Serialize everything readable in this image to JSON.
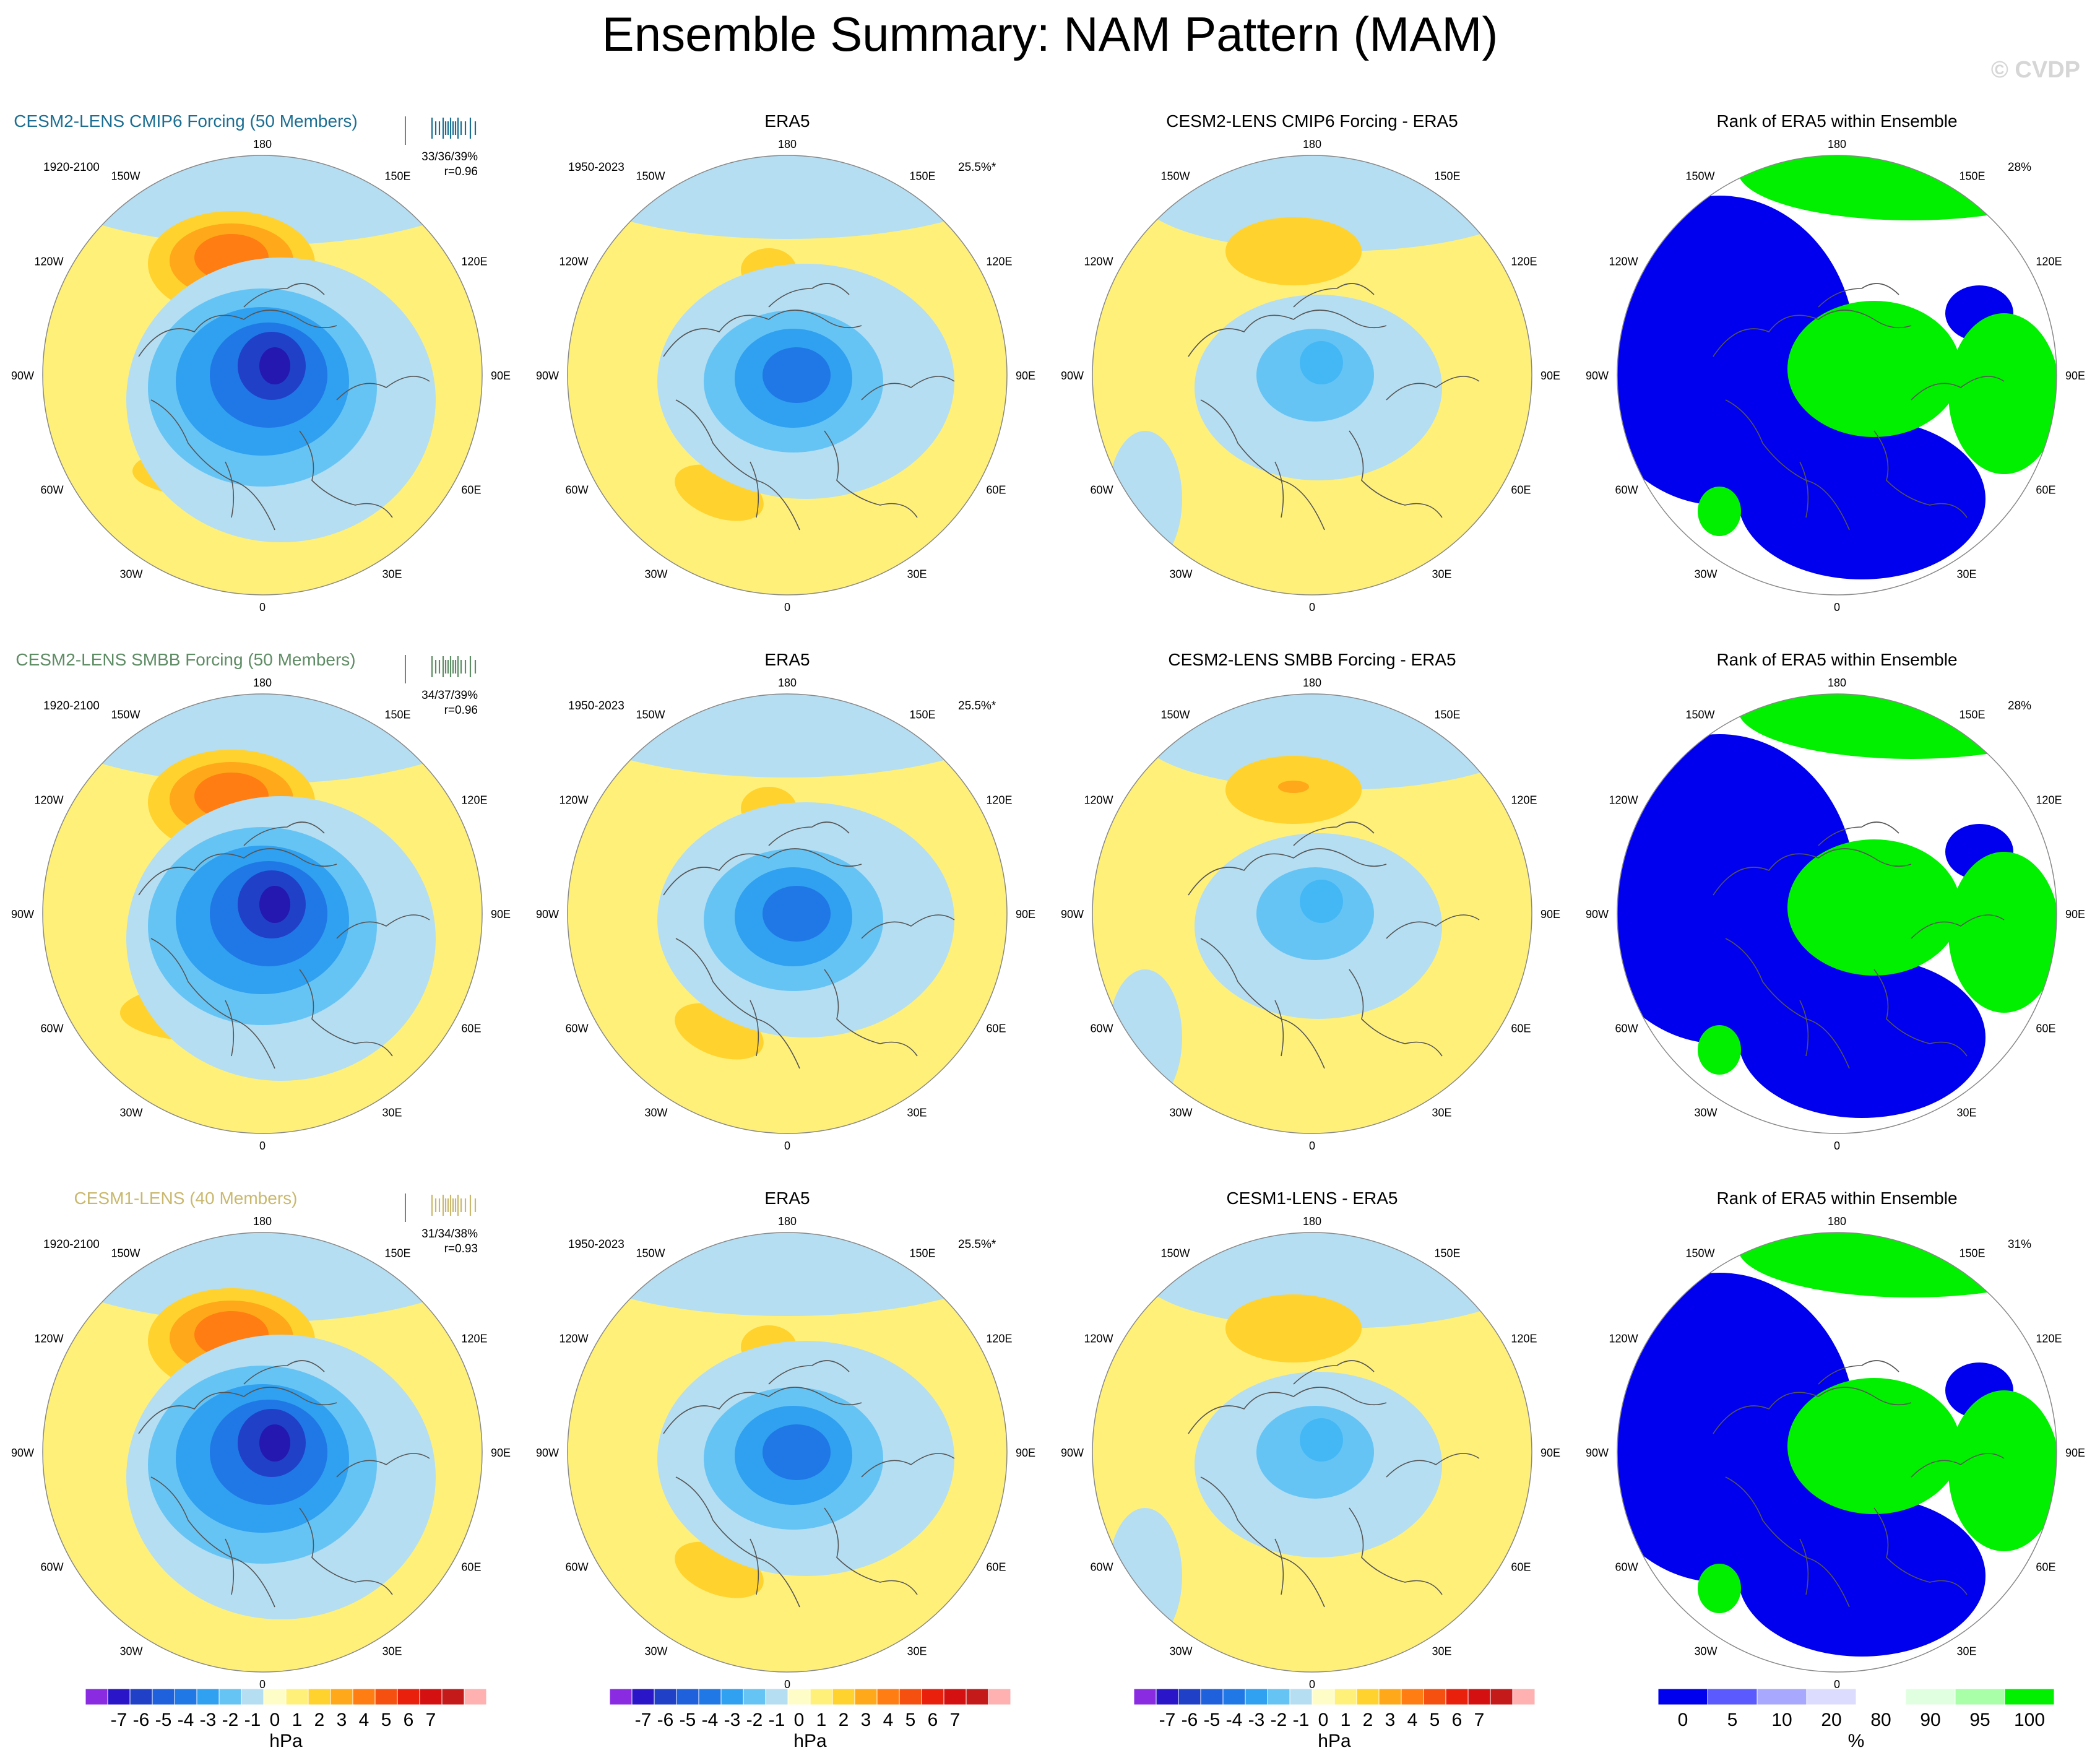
{
  "title": "Ensemble Summary: NAM Pattern (MAM)",
  "watermark": "© CVDP",
  "colors": {
    "pos1": "#fff07a",
    "pos2": "#ffd22e",
    "pos3": "#ffa81a",
    "pos4": "#ff7d12",
    "pos5": "#f5500f",
    "neg1": "#b5def2",
    "neg2": "#66c4f5",
    "neg3": "#30a0f0",
    "neg4": "#1f78e6",
    "neg5": "#2040c8",
    "rank_low": "#0000ee",
    "rank_mid": "#ffffff",
    "rank_high": "#00f000"
  },
  "rows": [
    {
      "model": {
        "title": "CESM2-LENS CMIP6 Forcing (50 Members)",
        "title_color": "#1b6e92",
        "years": "1920-2100",
        "stats_line1": "33/36/39%",
        "stats_line2": "r=0.96",
        "rug_color": "#1b6e92"
      },
      "obs": {
        "title": "ERA5",
        "years": "1950-2023",
        "pct": "25.5%*"
      },
      "diff": {
        "title": "CESM2-LENS CMIP6 Forcing - ERA5"
      },
      "rank": {
        "title": "Rank of ERA5 within Ensemble",
        "pct": "28%"
      }
    },
    {
      "model": {
        "title": "CESM2-LENS SMBB Forcing (50 Members)",
        "title_color": "#5e8c64",
        "years": "1920-2100",
        "stats_line1": "34/37/39%",
        "stats_line2": "r=0.96",
        "rug_color": "#5e8c64"
      },
      "obs": {
        "title": "ERA5",
        "years": "1950-2023",
        "pct": "25.5%*"
      },
      "diff": {
        "title": "CESM2-LENS SMBB Forcing - ERA5"
      },
      "rank": {
        "title": "Rank of ERA5 within Ensemble",
        "pct": "28%"
      }
    },
    {
      "model": {
        "title": "CESM1-LENS (40 Members)",
        "title_color": "#c9b86e",
        "years": "1920-2100",
        "stats_line1": "31/34/38%",
        "stats_line2": "r=0.93",
        "rug_color": "#c9b86e"
      },
      "obs": {
        "title": "ERA5",
        "years": "1950-2023",
        "pct": "25.5%*"
      },
      "diff": {
        "title": "CESM1-LENS - ERA5"
      },
      "rank": {
        "title": "Rank of ERA5 within Ensemble",
        "pct": "31%"
      }
    }
  ],
  "map_labels": {
    "top": "180",
    "bottom": "0",
    "left": "90W",
    "right": "90E",
    "ul1": "150W",
    "ul2": "120W",
    "ll1": "60W",
    "ll2": "30W",
    "ur1": "150E",
    "ur2": "120E",
    "lr1": "60E",
    "lr2": "30E"
  },
  "chart_data": {
    "type": "heatmap",
    "title": "Ensemble Summary: NAM Pattern (MAM)",
    "projection": "north polar stereographic",
    "colorbar_hpa": {
      "unit": "hPa",
      "ticks": [
        "-7",
        "-6",
        "-5",
        "-4",
        "-3",
        "-2",
        "-1",
        "0",
        "1",
        "2",
        "3",
        "4",
        "5",
        "6",
        "7"
      ],
      "colors": [
        "#8a2be2",
        "#2a16c8",
        "#2040c8",
        "#1f60dc",
        "#1f78e6",
        "#30a0f0",
        "#66c4f5",
        "#b5def2",
        "#fffdc7",
        "#fff07a",
        "#ffd22e",
        "#ffa81a",
        "#ff7d12",
        "#f5500f",
        "#e8200c",
        "#d41010",
        "#c41a1a",
        "#ffb0b0"
      ]
    },
    "colorbar_rank": {
      "unit": "%",
      "ticks": [
        "0",
        "5",
        "10",
        "20",
        "80",
        "90",
        "95",
        "100"
      ],
      "colors": [
        "#0000ee",
        "#5a5aff",
        "#a8a8ff",
        "#dcdcff",
        "#ffffff",
        "#e0ffe0",
        "#a8ffa8",
        "#00f000"
      ]
    },
    "pattern_correlations": [
      0.96,
      0.96,
      0.93
    ],
    "variance_explained_model": [
      "33/36/39%",
      "34/37/39%",
      "31/34/38%"
    ],
    "variance_explained_obs": "25.5%",
    "rank_pct": [
      "28%",
      "28%",
      "31%"
    ]
  }
}
